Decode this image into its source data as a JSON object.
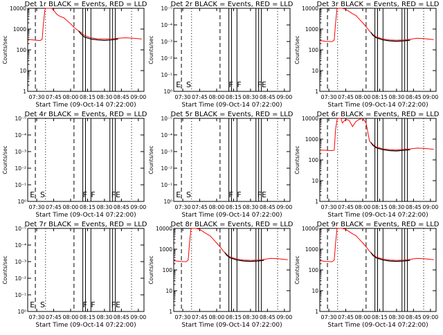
{
  "chart_data": {
    "shared": {
      "type": "line",
      "x_ticks": [
        "07:30",
        "07:45",
        "08:00",
        "08:15",
        "08:30",
        "08:45",
        "09:00"
      ],
      "x_range": [
        "07:22",
        "09:05"
      ],
      "xlabel": "Start Time (09-Oct-14 07:22:00)",
      "ylabel": "Counts/sec",
      "y_scale": "log",
      "ylim": [
        1,
        10000
      ],
      "y_ticks_normal": [
        "1",
        "10",
        "100",
        "1000",
        "10000"
      ],
      "y_ticks_empty": [
        "10⁰",
        "10⁻¹",
        "10⁻²",
        "10⁻³",
        "10⁻⁴",
        "10⁻⁵"
      ],
      "colors": {
        "events": "#000000",
        "lld": "#ff0000",
        "axes": "#000000"
      }
    },
    "panels": [
      {
        "title": "Det 1r BLACK = Events, RED = LLD",
        "empty": false,
        "yticks": "normal",
        "markers": [],
        "lld_profile": "A",
        "events": [
          [
            8.12,
            800
          ],
          [
            8.15,
            600
          ],
          [
            8.2,
            420
          ],
          [
            8.3,
            330
          ],
          [
            8.4,
            300
          ],
          [
            8.5,
            285
          ],
          [
            8.6,
            300
          ],
          [
            8.7,
            330
          ]
        ]
      },
      {
        "title": "Det 2r BLACK = Events, RED = LLD",
        "empty": true,
        "yticks": "empty",
        "markers": [
          "E",
          "S",
          "F",
          "F",
          "FE"
        ]
      },
      {
        "title": "Det 3r BLACK = Events, RED = LLD",
        "empty": false,
        "yticks": "normal",
        "markers": [],
        "lld_profile": "B",
        "events": [
          [
            8.12,
            700
          ],
          [
            8.15,
            500
          ],
          [
            8.2,
            380
          ],
          [
            8.3,
            300
          ],
          [
            8.4,
            270
          ],
          [
            8.5,
            260
          ],
          [
            8.6,
            270
          ],
          [
            8.7,
            290
          ]
        ]
      },
      {
        "title": "Det 4r BLACK = Events, RED = LLD",
        "empty": true,
        "yticks": "empty",
        "markers": [
          "E",
          "S",
          "F",
          "F",
          "FE"
        ]
      },
      {
        "title": "Det 5r BLACK = Events, RED = LLD",
        "empty": true,
        "yticks": "empty",
        "markers": [
          "E",
          "S",
          "F",
          "F",
          "FE"
        ]
      },
      {
        "title": "Det 6r BLACK = Events, RED = LLD",
        "empty": false,
        "yticks": "normal",
        "markers": [],
        "lld_profile": "C",
        "events": [
          [
            8.12,
            700
          ],
          [
            8.15,
            500
          ],
          [
            8.2,
            380
          ],
          [
            8.3,
            310
          ],
          [
            8.4,
            280
          ],
          [
            8.5,
            270
          ],
          [
            8.6,
            290
          ],
          [
            8.7,
            310
          ]
        ]
      },
      {
        "title": "Det 7r BLACK = Events, RED = LLD",
        "empty": true,
        "yticks": "empty",
        "markers": [
          "E",
          "S",
          "F",
          "F",
          "FE"
        ]
      },
      {
        "title": "Det 8r BLACK = Events, RED = LLD",
        "empty": false,
        "yticks": "mixed",
        "markers": [],
        "lld_profile": "B",
        "events": [
          [
            8.12,
            700
          ],
          [
            8.15,
            500
          ],
          [
            8.2,
            380
          ],
          [
            8.3,
            300
          ],
          [
            8.4,
            270
          ],
          [
            8.5,
            260
          ],
          [
            8.6,
            270
          ],
          [
            8.7,
            290
          ]
        ]
      },
      {
        "title": "Det 9r BLACK = Events, RED = LLD",
        "empty": false,
        "yticks": "mixed",
        "markers": [],
        "lld_profile": "B",
        "events": [
          [
            8.12,
            700
          ],
          [
            8.15,
            500
          ],
          [
            8.2,
            380
          ],
          [
            8.3,
            300
          ],
          [
            8.4,
            270
          ],
          [
            8.5,
            260
          ],
          [
            8.6,
            270
          ],
          [
            8.7,
            290
          ]
        ]
      }
    ],
    "lld_profiles": {
      "A": [
        [
          7.37,
          320
        ],
        [
          7.45,
          300
        ],
        [
          7.55,
          280
        ],
        [
          7.58,
          320
        ],
        [
          7.6,
          2000
        ],
        [
          7.62,
          8000
        ],
        [
          7.63,
          10000
        ],
        [
          7.72,
          10000
        ],
        [
          7.75,
          8000
        ],
        [
          7.8,
          5000
        ],
        [
          7.85,
          4000
        ],
        [
          7.9,
          3500
        ],
        [
          7.95,
          2500
        ],
        [
          8.0,
          1800
        ],
        [
          8.05,
          1200
        ],
        [
          8.1,
          900
        ],
        [
          8.15,
          700
        ],
        [
          8.2,
          500
        ],
        [
          8.3,
          380
        ],
        [
          8.4,
          340
        ],
        [
          8.5,
          330
        ],
        [
          8.6,
          340
        ],
        [
          8.7,
          360
        ],
        [
          8.8,
          380
        ],
        [
          8.9,
          370
        ],
        [
          9.05,
          330
        ]
      ],
      "B": [
        [
          7.37,
          280
        ],
        [
          7.45,
          260
        ],
        [
          7.55,
          250
        ],
        [
          7.58,
          300
        ],
        [
          7.6,
          2000
        ],
        [
          7.62,
          9000
        ],
        [
          7.63,
          10000
        ],
        [
          7.7,
          10000
        ],
        [
          7.75,
          9000
        ],
        [
          7.8,
          7000
        ],
        [
          7.85,
          5500
        ],
        [
          7.9,
          4500
        ],
        [
          7.95,
          3000
        ],
        [
          8.0,
          2000
        ],
        [
          8.05,
          1300
        ],
        [
          8.1,
          800
        ],
        [
          8.15,
          550
        ],
        [
          8.2,
          420
        ],
        [
          8.3,
          330
        ],
        [
          8.4,
          300
        ],
        [
          8.5,
          290
        ],
        [
          8.6,
          300
        ],
        [
          8.7,
          320
        ],
        [
          8.8,
          360
        ],
        [
          8.9,
          350
        ],
        [
          9.05,
          310
        ]
      ],
      "C": [
        [
          7.37,
          300
        ],
        [
          7.45,
          290
        ],
        [
          7.55,
          280
        ],
        [
          7.58,
          300
        ],
        [
          7.6,
          3000
        ],
        [
          7.62,
          8000
        ],
        [
          7.63,
          10000
        ],
        [
          7.68,
          10000
        ],
        [
          7.7,
          6000
        ],
        [
          7.75,
          9000
        ],
        [
          7.8,
          8000
        ],
        [
          7.85,
          4000
        ],
        [
          7.9,
          7000
        ],
        [
          7.95,
          9000
        ],
        [
          8.0,
          10000
        ],
        [
          8.05,
          6000
        ],
        [
          8.1,
          800
        ],
        [
          8.15,
          550
        ],
        [
          8.2,
          420
        ],
        [
          8.3,
          340
        ],
        [
          8.4,
          310
        ],
        [
          8.5,
          300
        ],
        [
          8.6,
          320
        ],
        [
          8.7,
          340
        ],
        [
          8.8,
          370
        ],
        [
          8.9,
          360
        ],
        [
          9.05,
          320
        ]
      ]
    },
    "vertical_lines": {
      "dashed": [
        7.48,
        8.05
      ],
      "dotted": [
        7.63,
        8.9
      ],
      "solid": [
        8.18,
        8.22,
        8.3,
        8.58,
        8.62,
        8.66
      ]
    }
  }
}
